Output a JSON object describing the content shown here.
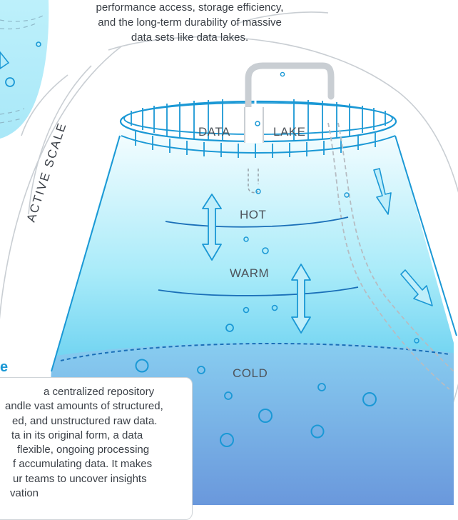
{
  "top_text_lines": [
    "performance access, storage efficiency,",
    "and the long-term durability of massive",
    "data sets like data lakes."
  ],
  "ring_label": "ACTIVE SCALE",
  "lake": {
    "label_left": "DATA",
    "label_right": "LAKE",
    "tiers": [
      {
        "label": "HOT"
      },
      {
        "label": "WARM"
      },
      {
        "label": "COLD"
      }
    ]
  },
  "left_panel": {
    "title_fragment": "e",
    "lines": [
      "a centralized repository",
      "andle vast amounts of structured,",
      "ed, and unstructured raw data.",
      "ta in its original form, a data",
      "flexible, ongoing processing",
      "f accumulating data. It makes",
      "ur teams to uncover insights",
      "vation"
    ]
  },
  "colors": {
    "accent": "#1a98d5",
    "water_light": "#c8f1fb",
    "water_mid": "#7fdcf4",
    "water_deep": "#6ca7e1",
    "ring": "#c9ced3",
    "text": "#3a3f46"
  }
}
